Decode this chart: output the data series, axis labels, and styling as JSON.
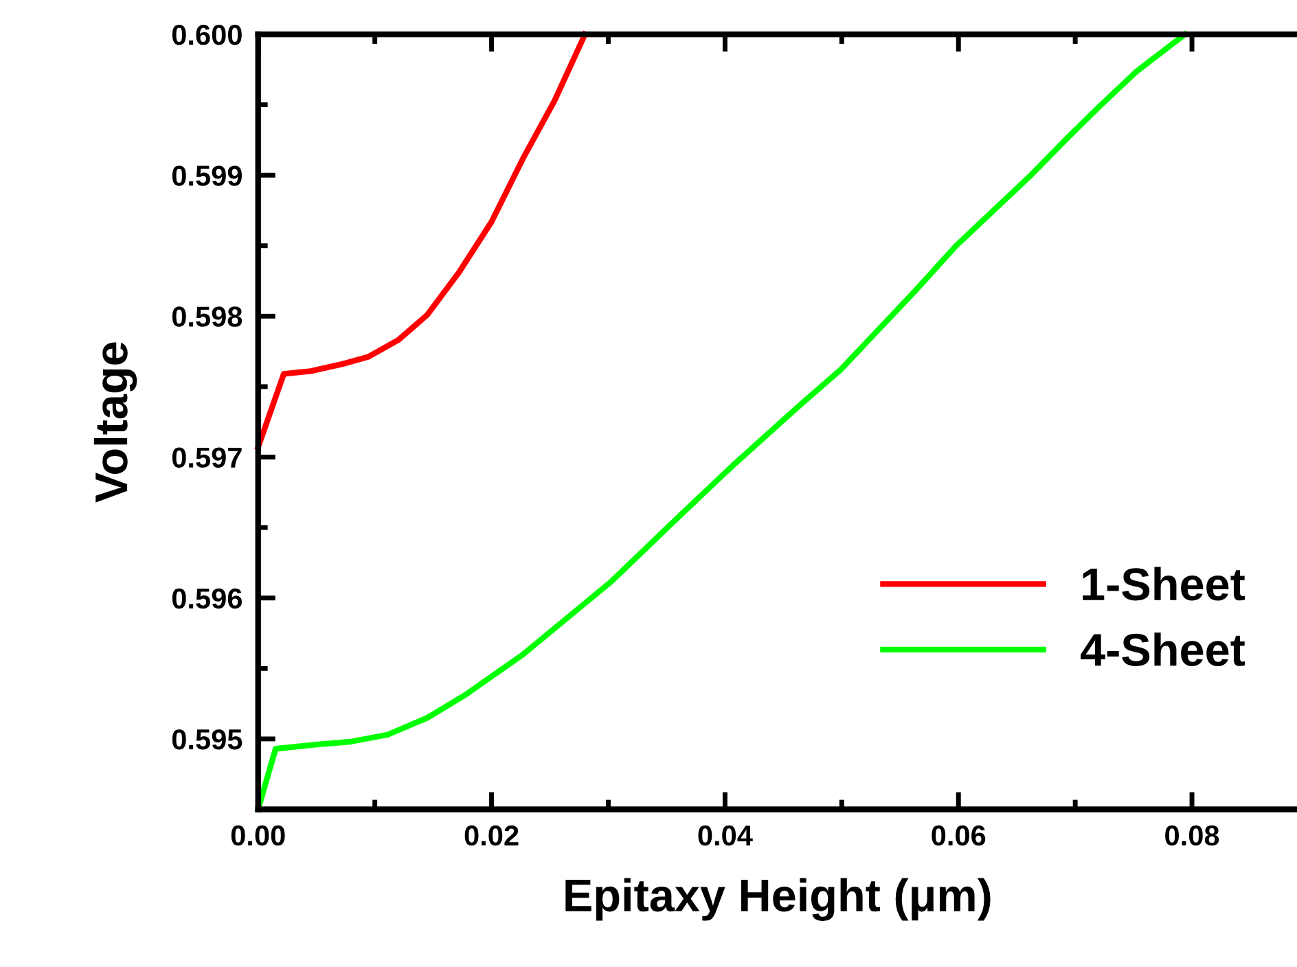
{
  "chart_data": {
    "type": "line",
    "xlabel": "Epitaxy Height (μm)",
    "ylabel": "Voltage",
    "xlim": [
      0,
      0.089
    ],
    "ylim": [
      0.5945,
      0.6
    ],
    "xticks": [
      {
        "value": 0,
        "label": "0.00"
      },
      {
        "value": 0.02,
        "label": "0.02"
      },
      {
        "value": 0.04,
        "label": "0.04"
      },
      {
        "value": 0.06,
        "label": "0.06"
      },
      {
        "value": 0.08,
        "label": "0.08"
      }
    ],
    "yticks": [
      0.595,
      0.596,
      0.597,
      0.598,
      0.599,
      {
        "value": 0.6,
        "label": "0.600"
      }
    ],
    "legend": "bottom right",
    "grid": false,
    "series": [
      {
        "name": "1-Sheet",
        "color": "#ff0000",
        "x": [
          0,
          0.0022,
          0.0045,
          0.0072,
          0.0094,
          0.012,
          0.0145,
          0.0172,
          0.02,
          0.0227,
          0.0254,
          0.028
        ],
        "values": [
          0.59707,
          0.59759,
          0.59761,
          0.59766,
          0.59771,
          0.59783,
          0.59801,
          0.59831,
          0.59867,
          0.59912,
          0.59953,
          0.6
        ]
      },
      {
        "name": "4-Sheet",
        "color": "#00ff00",
        "x": [
          0,
          0.0015,
          0.005,
          0.0079,
          0.0111,
          0.0145,
          0.0177,
          0.0227,
          0.0303,
          0.0362,
          0.0408,
          0.0463,
          0.0499,
          0.0563,
          0.0598,
          0.0662,
          0.0694,
          0.0721,
          0.0753,
          0.0794
        ],
        "values": [
          0.5945,
          0.59493,
          0.59496,
          0.59498,
          0.59503,
          0.59515,
          0.59531,
          0.5956,
          0.59612,
          0.59659,
          0.59695,
          0.59736,
          0.59762,
          0.59818,
          0.5985,
          0.599,
          0.59927,
          0.59949,
          0.59974,
          0.6
        ]
      }
    ]
  }
}
